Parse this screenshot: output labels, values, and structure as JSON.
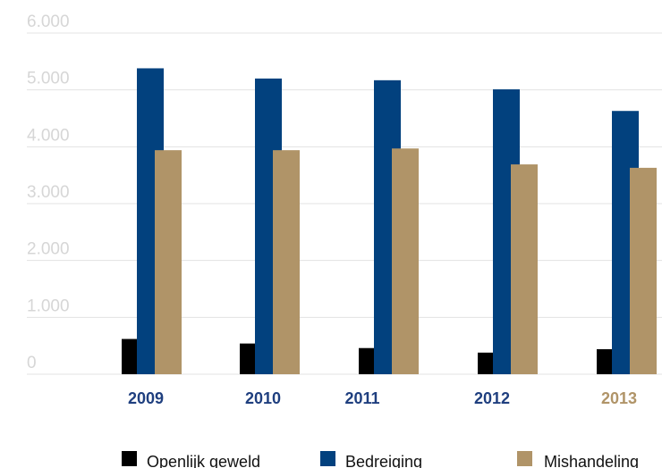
{
  "chart_data": {
    "type": "bar",
    "categories": [
      "2009",
      "2010",
      "2011",
      "2012",
      "2013"
    ],
    "category_colors": [
      "#1f3f7f",
      "#1f3f7f",
      "#1f3f7f",
      "#1f3f7f",
      "#b09468"
    ],
    "series": [
      {
        "name": "Openlijk geweld",
        "color": "#000000",
        "values": [
          620,
          540,
          460,
          380,
          440
        ]
      },
      {
        "name": "Bedreiging",
        "color": "#02417e",
        "values": [
          5380,
          5200,
          5170,
          5010,
          4630
        ]
      },
      {
        "name": "Mishandeling",
        "color": "#b09468",
        "values": [
          3940,
          3940,
          3970,
          3690,
          3630
        ]
      }
    ],
    "y_ticks": [
      "0",
      "1.000",
      "2.000",
      "3.000",
      "4.000",
      "5.000",
      "6.000"
    ],
    "ylim": [
      0,
      6000
    ],
    "grid": true,
    "legend": "bottom"
  }
}
